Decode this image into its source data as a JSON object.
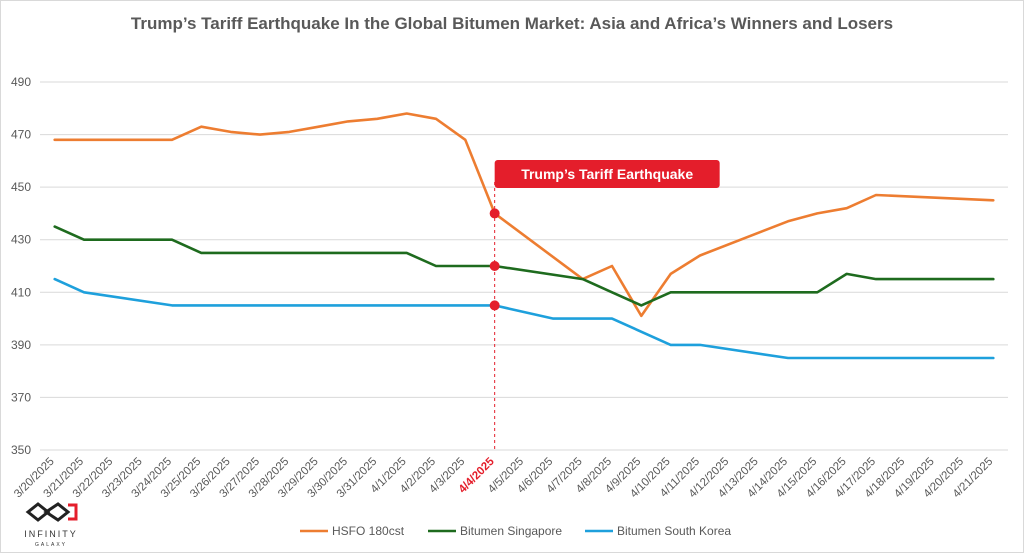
{
  "chart_data": {
    "type": "line",
    "title": "Trump’s Tariff Earthquake In the Global Bitumen Market: Asia and Africa’s Winners and Losers",
    "xlabel": "",
    "ylabel": "",
    "ylim": [
      350,
      490
    ],
    "yticks": [
      350,
      370,
      390,
      410,
      430,
      450,
      470,
      490
    ],
    "grid": "horizontal",
    "legend_position": "bottom",
    "categories": [
      "3/20/2025",
      "3/21/2025",
      "3/22/2025",
      "3/23/2025",
      "3/24/2025",
      "3/25/2025",
      "3/26/2025",
      "3/27/2025",
      "3/28/2025",
      "3/29/2025",
      "3/30/2025",
      "3/31/2025",
      "4/1/2025",
      "4/2/2025",
      "4/3/2025",
      "4/4/2025",
      "4/5/2025",
      "4/6/2025",
      "4/7/2025",
      "4/8/2025",
      "4/9/2025",
      "4/10/2025",
      "4/11/2025",
      "4/12/2025",
      "4/13/2025",
      "4/14/2025",
      "4/15/2025",
      "4/16/2025",
      "4/17/2025",
      "4/18/2025",
      "4/19/2025",
      "4/20/2025",
      "4/21/2025"
    ],
    "highlighted_category": "4/4/2025",
    "series": [
      {
        "name": "HSFO 180cst",
        "color": "#ed7d31",
        "values": [
          468,
          468,
          468,
          468,
          468,
          473,
          471,
          470,
          471,
          473,
          475,
          476,
          478,
          476,
          468,
          440,
          null,
          null,
          415,
          420,
          401,
          417,
          424,
          null,
          null,
          437,
          440,
          442,
          447,
          null,
          null,
          null,
          445
        ]
      },
      {
        "name": "Bitumen Singapore",
        "color": "#1e6b1e",
        "values": [
          435,
          430,
          430,
          430,
          430,
          425,
          425,
          425,
          425,
          425,
          425,
          425,
          425,
          420,
          420,
          420,
          null,
          null,
          415,
          410,
          405,
          410,
          410,
          410,
          410,
          410,
          410,
          417,
          415,
          415,
          415,
          415,
          415
        ]
      },
      {
        "name": "Bitumen South Korea",
        "color": "#1ea0dc",
        "values": [
          415,
          410,
          null,
          null,
          405,
          405,
          405,
          405,
          405,
          405,
          405,
          405,
          405,
          405,
          405,
          405,
          null,
          400,
          400,
          400,
          null,
          390,
          390,
          null,
          null,
          385,
          385,
          385,
          385,
          385,
          385,
          385,
          385
        ]
      }
    ],
    "annotation": {
      "label": "Trump’s Tariff Earthquake",
      "category": "4/4/2025",
      "color": "#e41e2b"
    }
  },
  "logo": {
    "name": "INFINITY",
    "sub": "GALAXY"
  }
}
